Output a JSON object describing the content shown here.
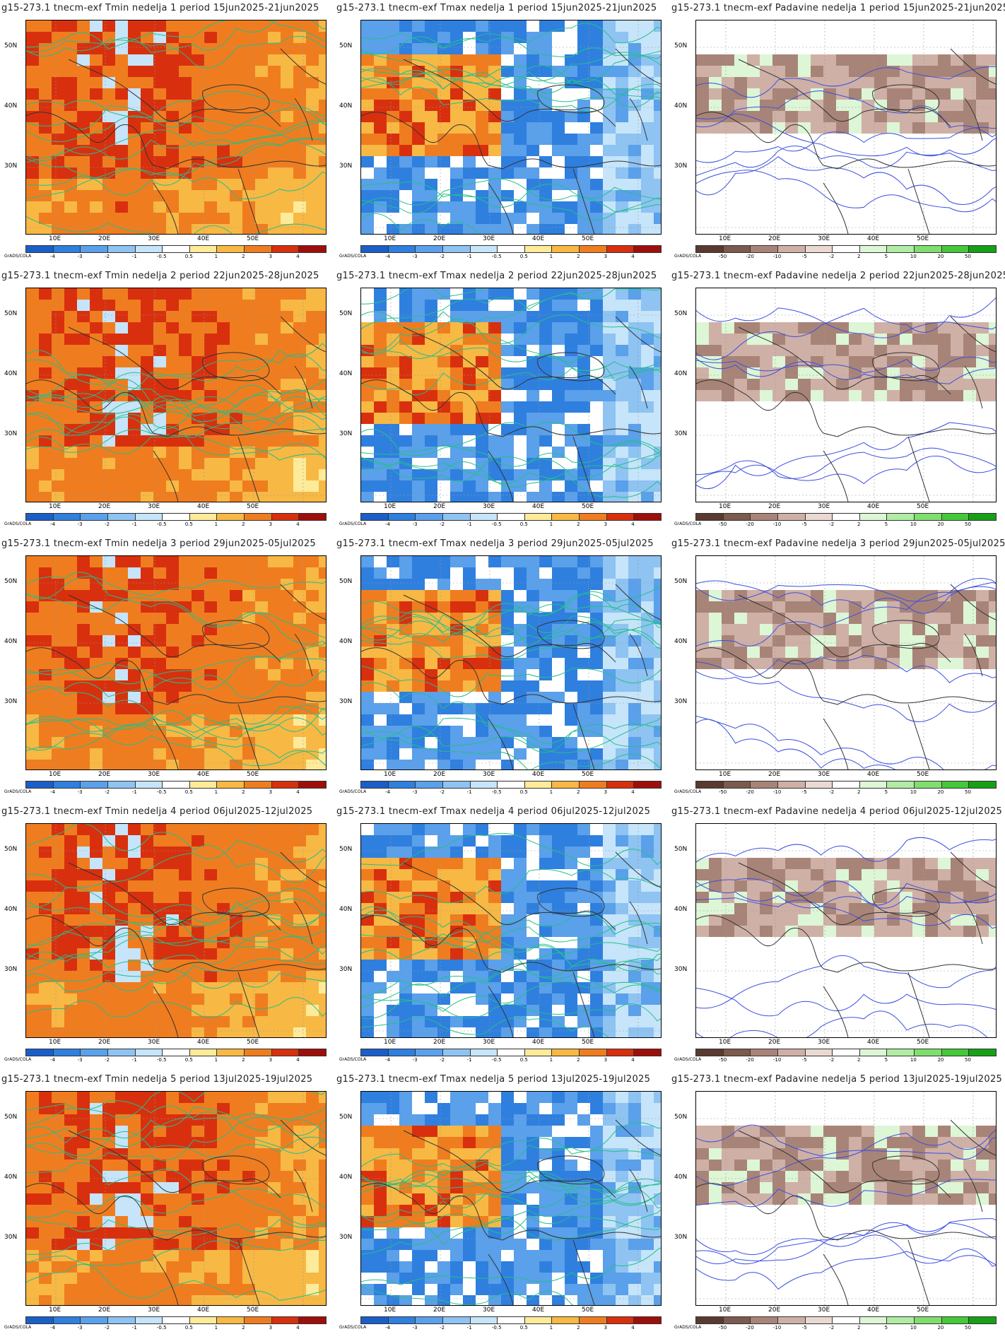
{
  "panels": [
    {
      "title": "g15-273.1 tnecm-exf Tmin nedelja 1 period 15jun2025-21jun2025",
      "type": "tmin"
    },
    {
      "title": "g15-273.1 tnecm-exf Tmax nedelja 1 period 15jun2025-21jun2025",
      "type": "tmax"
    },
    {
      "title": "g15-273.1 tnecm-exf Padavine nedelja 1 period 15jun2025-21jun2025",
      "type": "precip"
    },
    {
      "title": "g15-273.1 tnecm-exf Tmin nedelja 2 period 22jun2025-28jun2025",
      "type": "tmin"
    },
    {
      "title": "g15-273.1 tnecm-exf Tmax nedelja 2 period 22jun2025-28jun2025",
      "type": "tmax"
    },
    {
      "title": "g15-273.1 tnecm-exf Padavine nedelja 2 period 22jun2025-28jun2025",
      "type": "precip"
    },
    {
      "title": "g15-273.1 tnecm-exf Tmin nedelja 3 period 29jun2025-05jul2025",
      "type": "tmin"
    },
    {
      "title": "g15-273.1 tnecm-exf Tmax nedelja 3 period 29jun2025-05jul2025",
      "type": "tmax"
    },
    {
      "title": "g15-273.1 tnecm-exf Padavine nedelja 3 period 29jun2025-05jul2025",
      "type": "precip"
    },
    {
      "title": "g15-273.1 tnecm-exf Tmin nedelja 4 period 06jul2025-12jul2025",
      "type": "tmin"
    },
    {
      "title": "g15-273.1 tnecm-exf Tmax nedelja 4 period 06jul2025-12jul2025",
      "type": "tmax"
    },
    {
      "title": "g15-273.1 tnecm-exf Padavine nedelja 4 period 06jul2025-12jul2025",
      "type": "precip"
    },
    {
      "title": "g15-273.1 tnecm-exf Tmin nedelja 5 period 13jul2025-19jul2025",
      "type": "tmin"
    },
    {
      "title": "g15-273.1 tnecm-exf Tmax nedelja 5 period 13jul2025-19jul2025",
      "type": "tmax"
    },
    {
      "title": "g15-273.1 tnecm-exf Padavine nedelja 5 period 13jul2025-19jul2025",
      "type": "precip"
    }
  ],
  "axes": {
    "lat_labels": [
      "50N",
      "40N",
      "30N"
    ],
    "lon_labels": [
      "10E",
      "20E",
      "30E",
      "40E",
      "50E"
    ]
  },
  "colorbars": {
    "temperature": {
      "ticks": [
        "-4",
        "-3",
        "-2",
        "-1",
        "-0.5",
        "0.5",
        "1",
        "2",
        "3",
        "4"
      ],
      "colors": [
        "#1a5fc8",
        "#2f7fdf",
        "#5aa0ea",
        "#8ec3f2",
        "#c6e4fa",
        "#ffffff",
        "#fdeb9a",
        "#f7b844",
        "#ef7d1f",
        "#d8300e",
        "#9e0f0b"
      ]
    },
    "precipitation": {
      "ticks": [
        "-50",
        "-20",
        "-10",
        "-5",
        "-2",
        "2",
        "5",
        "10",
        "20",
        "50"
      ],
      "colors": [
        "#5a3a30",
        "#7d5a4e",
        "#a88478",
        "#cfb0a6",
        "#ead9d2",
        "#ffffff",
        "#dcf6d6",
        "#b0eca4",
        "#7fde6e",
        "#45c83a",
        "#16a016"
      ]
    },
    "credit": "GrADS/COLA"
  }
}
